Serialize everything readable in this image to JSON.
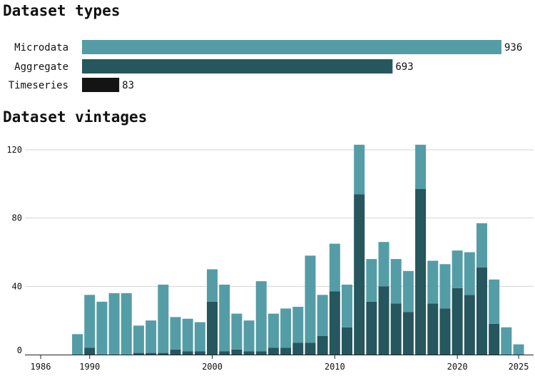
{
  "colors": {
    "microdata": "#559da6",
    "aggregate": "#26565e",
    "timeseries": "#141414",
    "grid": "#d4d4d4",
    "axis": "#222222"
  },
  "chart_data": [
    {
      "type": "bar",
      "orientation": "horizontal",
      "title": "Dataset types",
      "categories": [
        "Microdata",
        "Aggregate",
        "Timeseries"
      ],
      "values": [
        936,
        693,
        83
      ]
    },
    {
      "type": "bar",
      "stacked": true,
      "title": "Dataset vintages",
      "x": [
        1986,
        1987,
        1988,
        1989,
        1990,
        1991,
        1992,
        1993,
        1994,
        1995,
        1996,
        1997,
        1998,
        1999,
        2000,
        2001,
        2002,
        2003,
        2004,
        2005,
        2006,
        2007,
        2008,
        2009,
        2010,
        2011,
        2012,
        2013,
        2014,
        2015,
        2016,
        2017,
        2018,
        2019,
        2020,
        2021,
        2022,
        2023,
        2024,
        2025
      ],
      "xticks": [
        1986,
        1990,
        2000,
        2010,
        2020,
        2025
      ],
      "yticks": [
        0,
        40,
        80,
        120
      ],
      "ylim": [
        0,
        124
      ],
      "grid": true,
      "series": [
        {
          "values": [
            0,
            0,
            0,
            0,
            4,
            0,
            0,
            0,
            1,
            1,
            1,
            3,
            2,
            2,
            31,
            2,
            3,
            2,
            2,
            4,
            4,
            7,
            7,
            11,
            37,
            16,
            94,
            31,
            40,
            30,
            25,
            97,
            30,
            27,
            39,
            35,
            51,
            18,
            0,
            0
          ]
        },
        {
          "values": [
            0,
            0,
            0,
            12,
            31,
            31,
            36,
            36,
            16,
            19,
            40,
            19,
            19,
            17,
            19,
            39,
            21,
            18,
            41,
            20,
            23,
            21,
            51,
            24,
            28,
            25,
            29,
            25,
            26,
            26,
            24,
            26,
            25,
            26,
            22,
            25,
            26,
            26,
            16,
            6
          ]
        }
      ]
    }
  ]
}
